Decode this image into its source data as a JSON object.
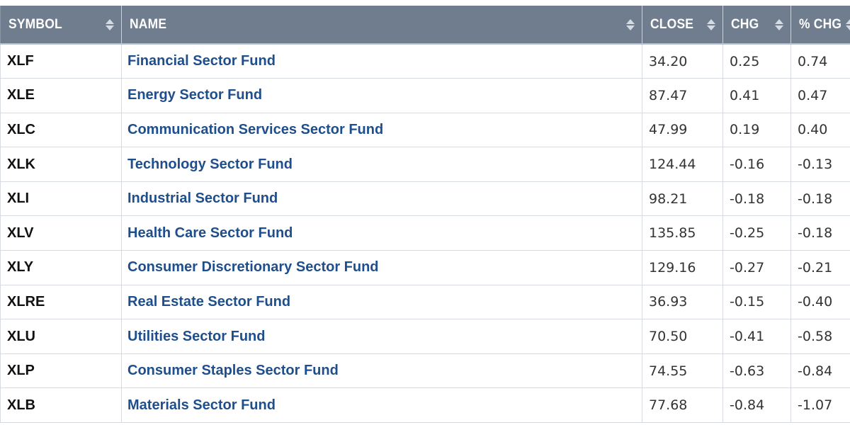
{
  "table": {
    "headers": {
      "symbol": "SYMBOL",
      "name": "NAME",
      "close": "CLOSE",
      "chg": "CHG",
      "pct_chg": "% CHG"
    },
    "rows": [
      {
        "symbol": "XLF",
        "name": "Financial Sector Fund",
        "close": "34.20",
        "chg": "0.25",
        "pct_chg": "0.74"
      },
      {
        "symbol": "XLE",
        "name": "Energy Sector Fund",
        "close": "87.47",
        "chg": "0.41",
        "pct_chg": "0.47"
      },
      {
        "symbol": "XLC",
        "name": "Communication Services Sector Fund",
        "close": "47.99",
        "chg": "0.19",
        "pct_chg": "0.40"
      },
      {
        "symbol": "XLK",
        "name": "Technology Sector Fund",
        "close": "124.44",
        "chg": "-0.16",
        "pct_chg": "-0.13"
      },
      {
        "symbol": "XLI",
        "name": "Industrial Sector Fund",
        "close": "98.21",
        "chg": "-0.18",
        "pct_chg": "-0.18"
      },
      {
        "symbol": "XLV",
        "name": "Health Care Sector Fund",
        "close": "135.85",
        "chg": "-0.25",
        "pct_chg": "-0.18"
      },
      {
        "symbol": "XLY",
        "name": "Consumer Discretionary Sector Fund",
        "close": "129.16",
        "chg": "-0.27",
        "pct_chg": "-0.21"
      },
      {
        "symbol": "XLRE",
        "name": "Real Estate Sector Fund",
        "close": "36.93",
        "chg": "-0.15",
        "pct_chg": "-0.40"
      },
      {
        "symbol": "XLU",
        "name": "Utilities Sector Fund",
        "close": "70.50",
        "chg": "-0.41",
        "pct_chg": "-0.58"
      },
      {
        "symbol": "XLP",
        "name": "Consumer Staples Sector Fund",
        "close": "74.55",
        "chg": "-0.63",
        "pct_chg": "-0.84"
      },
      {
        "symbol": "XLB",
        "name": "Materials Sector Fund",
        "close": "77.68",
        "chg": "-0.84",
        "pct_chg": "-1.07"
      }
    ]
  },
  "icons": {
    "sort": "sort-arrows-icon"
  },
  "colors": {
    "header_bg": "#6f7d8f",
    "header_text": "#ffffff",
    "link": "#1f4e8c",
    "grid": "#d6dbe2"
  }
}
